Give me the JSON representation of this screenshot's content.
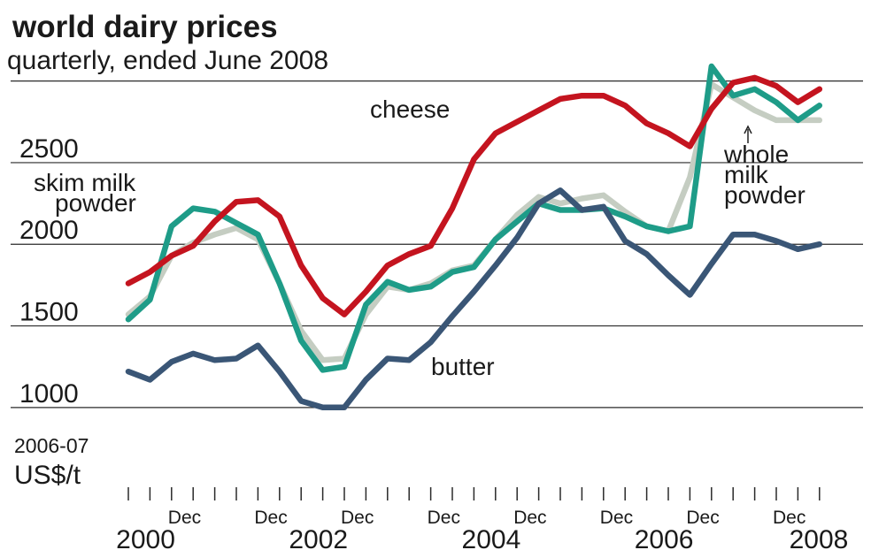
{
  "chart_data": {
    "type": "line",
    "title": "world dairy prices",
    "subtitle": "quarterly, ended June 2008",
    "unit_labels": [
      "2006-07",
      "US$/t"
    ],
    "categories": [
      null,
      null,
      "Dec",
      null,
      null,
      null,
      "Dec",
      null,
      null,
      null,
      "Dec",
      null,
      null,
      null,
      "Dec",
      null,
      null,
      null,
      "Dec",
      null,
      null,
      null,
      "Dec",
      null,
      null,
      null,
      "Dec",
      null,
      null,
      null,
      "Dec",
      null,
      null
    ],
    "year_labels": [
      "2000",
      "2002",
      "2004",
      "2006",
      "2008"
    ],
    "ylim": [
      490,
      3090
    ],
    "yticks": [
      1000,
      1500,
      2000,
      2500,
      {
        "value": 3000,
        "label": null
      }
    ],
    "grid": true,
    "series": [
      {
        "name": "whole milk powder",
        "color": "#c5cdc2",
        "values": [
          1570,
          1680,
          1930,
          2010,
          2060,
          2100,
          2030,
          1760,
          1470,
          1290,
          1300,
          1570,
          1740,
          1720,
          1760,
          1840,
          1870,
          2030,
          2180,
          2290,
          2250,
          2280,
          2300,
          2200,
          2110,
          2080,
          2410,
          2980,
          2900,
          2820,
          2760,
          2760,
          2760
        ]
      },
      {
        "name": "skim milk powder",
        "color": "#1e9c88",
        "values": [
          1540,
          1660,
          2110,
          2220,
          2200,
          2130,
          2060,
          1760,
          1410,
          1230,
          1250,
          1630,
          1770,
          1720,
          1740,
          1830,
          1860,
          2030,
          2140,
          2250,
          2210,
          2210,
          2220,
          2170,
          2110,
          2080,
          2110,
          3090,
          2910,
          2950,
          2870,
          2760,
          2850
        ]
      },
      {
        "name": "butter",
        "color": "#3a5676",
        "values": [
          1220,
          1170,
          1280,
          1330,
          1290,
          1300,
          1380,
          1220,
          1040,
          1000,
          1000,
          1170,
          1300,
          1290,
          1400,
          1560,
          1710,
          1870,
          2040,
          2250,
          2330,
          2210,
          2230,
          2020,
          1940,
          1810,
          1690,
          1880,
          2060,
          2060,
          2020,
          1970,
          2000
        ]
      },
      {
        "name": "cheese",
        "color": "#c4141f",
        "values": [
          1760,
          1830,
          1930,
          1990,
          2140,
          2260,
          2270,
          2170,
          1870,
          1670,
          1570,
          1710,
          1870,
          1940,
          1990,
          2220,
          2520,
          2680,
          2750,
          2820,
          2890,
          2910,
          2910,
          2850,
          2740,
          2680,
          2600,
          2830,
          2990,
          3020,
          2970,
          2870,
          2950
        ]
      }
    ]
  }
}
